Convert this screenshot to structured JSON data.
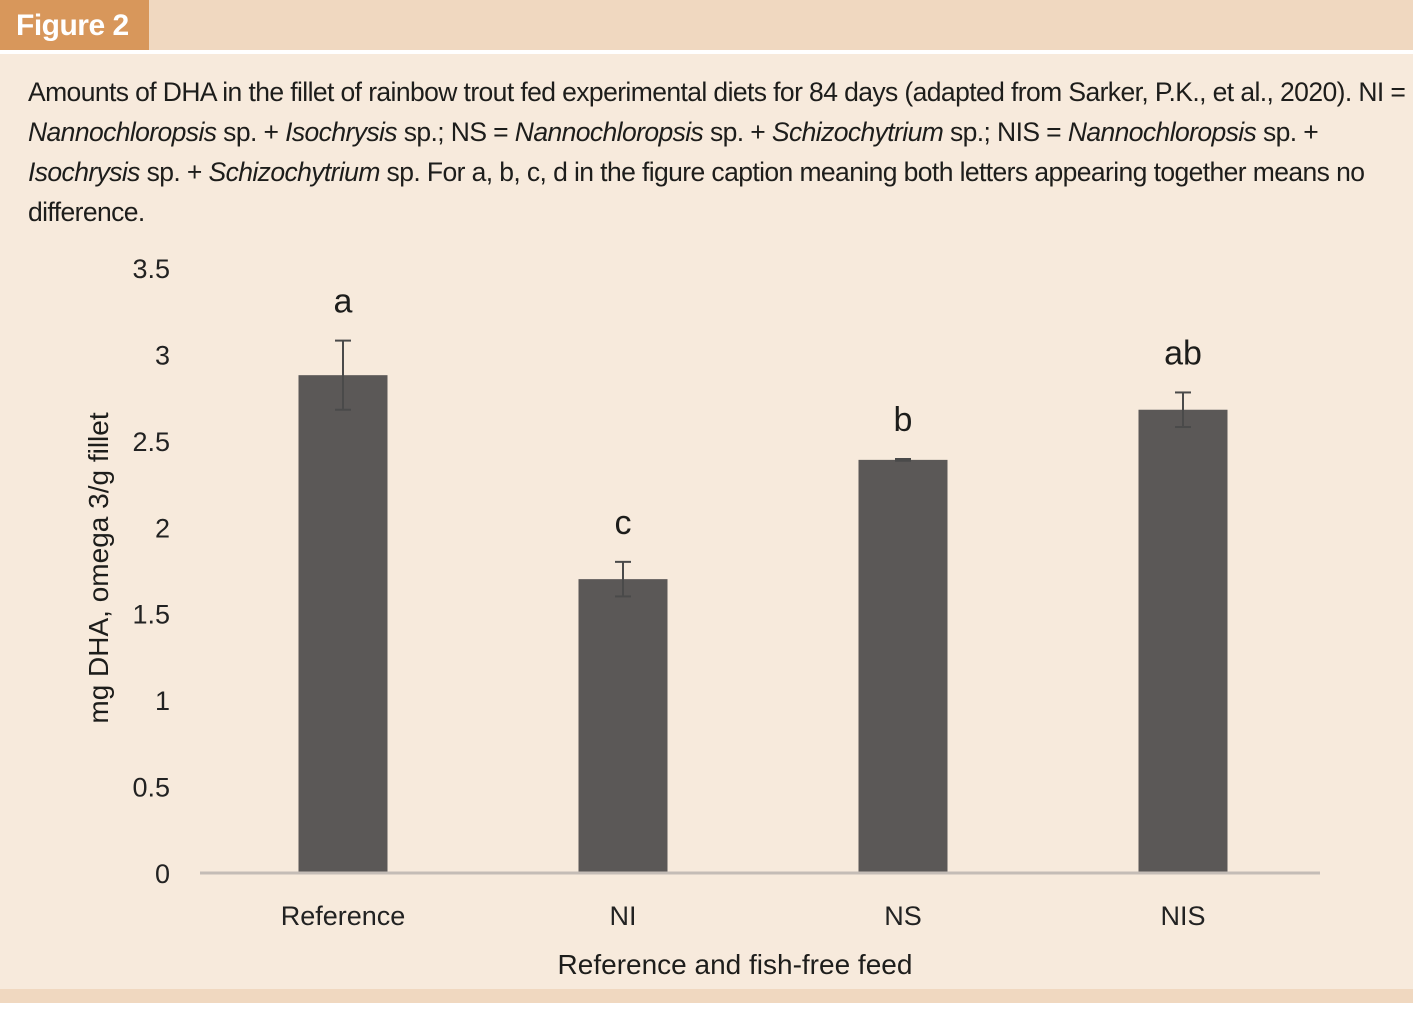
{
  "figure_tag": "Figure 2",
  "caption": {
    "segments": [
      {
        "text": "Amounts of DHA in the fillet of rainbow trout fed experimental diets for 84 days (adapted from Sarker, P.K., et al., 2020). NI = ",
        "italic": false
      },
      {
        "text": "Nannochloropsis",
        "italic": true
      },
      {
        "text": " sp. + ",
        "italic": false
      },
      {
        "text": "Isochrysis",
        "italic": true
      },
      {
        "text": " sp.; NS = ",
        "italic": false
      },
      {
        "text": "Nannochloropsis",
        "italic": true
      },
      {
        "text": " sp. + ",
        "italic": false
      },
      {
        "text": "Schizochytrium",
        "italic": true
      },
      {
        "text": " sp.; NIS = ",
        "italic": false
      },
      {
        "text": "Nannochloropsis",
        "italic": true
      },
      {
        "text": " sp. + ",
        "italic": false
      },
      {
        "text": "Isochrysis",
        "italic": true
      },
      {
        "text": " sp. + ",
        "italic": false
      },
      {
        "text": "Schizochytrium",
        "italic": true
      },
      {
        "text": " sp. For a, b, c, d in the figure caption meaning both letters appearing together means no difference.",
        "italic": false
      }
    ]
  },
  "colors": {
    "background": "#f7eadc",
    "band": "#f0d8c0",
    "tag": "#d8975b",
    "bar": "#5b5857",
    "axis": "#c4bcb6",
    "error_bar": "#4a4a4a"
  },
  "chart_data": {
    "type": "bar",
    "title": "",
    "xlabel": "Reference and fish-free feed",
    "ylabel": "mg DHA, omega 3/g fillet",
    "categories": [
      "Reference",
      "NI",
      "NS",
      "NIS"
    ],
    "values": [
      2.88,
      1.7,
      2.39,
      2.68
    ],
    "error": [
      0.2,
      0.1,
      0.005,
      0.1
    ],
    "significance": [
      "a",
      "c",
      "b",
      "ab"
    ],
    "ylim": [
      0,
      3.5
    ],
    "yticks": [
      0,
      0.5,
      1,
      1.5,
      2,
      2.5,
      3,
      3.5
    ],
    "ytick_labels": [
      "0",
      "0.5",
      "1",
      "1.5",
      "2",
      "2.5",
      "3",
      "3.5"
    ],
    "grid": false,
    "legend": "none"
  }
}
